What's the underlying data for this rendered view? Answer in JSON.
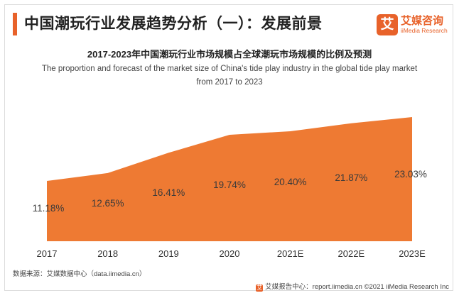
{
  "header": {
    "title": "中国潮玩行业发展趋势分析（一）：发展前景",
    "logo_mark": "艾",
    "logo_cn": "艾媒咨询",
    "logo_en": "iiMedia Research"
  },
  "chart_data": {
    "type": "area",
    "title": "2017-2023年中国潮玩行业市场规模占全球潮玩市场规模的比例及预测",
    "subtitle_lines": [
      "The proportion and forecast of the market size of China's tide play industry in the global tide play market",
      "from 2017 to 2023"
    ],
    "categories": [
      "2017",
      "2018",
      "2019",
      "2020",
      "2021E",
      "2022E",
      "2023E"
    ],
    "values": [
      11.18,
      12.65,
      16.41,
      19.74,
      20.4,
      21.87,
      23.03
    ],
    "value_labels": [
      "11.18%",
      "12.65%",
      "16.41%",
      "19.74%",
      "20.40%",
      "21.87%",
      "23.03%"
    ],
    "unit": "%",
    "color": "#ee7a33",
    "grid": false
  },
  "source": "数据来源：艾媒数据中心（data.iimedia.cn）",
  "footer": {
    "icon": "艾",
    "text": "艾媒报告中心：report.iimedia.cn  ©2021  iiMedia Research  Inc"
  }
}
